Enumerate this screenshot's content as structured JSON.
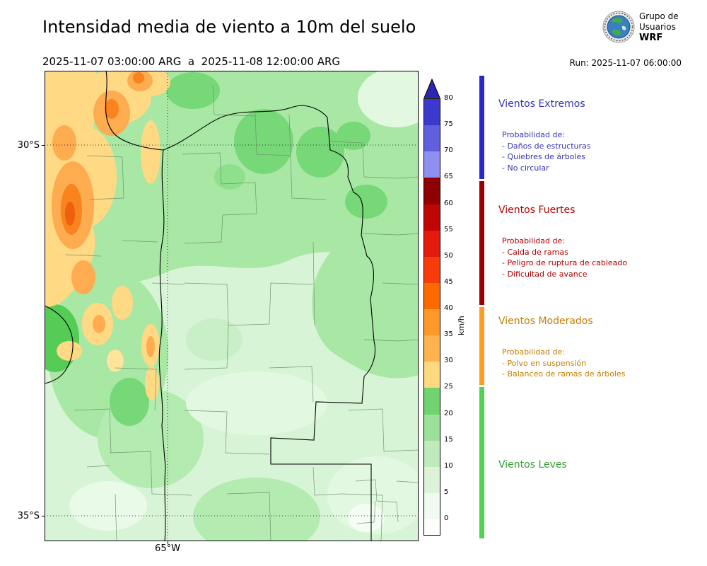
{
  "header": {
    "title": "Intensidad media de viento a 10m del suelo",
    "period": "2025-11-07 03:00:00 ARG  a  2025-11-08 12:00:00 ARG",
    "run": "Run: 2025-11-07 06:00:00",
    "logo": {
      "line1": "Grupo de",
      "line2": "Usuarios",
      "line3": "WRF"
    }
  },
  "map": {
    "lat_labels": [
      "30°S",
      "35°S"
    ],
    "lon_label": "65°W"
  },
  "colorbar": {
    "unit": "km/h",
    "arrow_color": "#2a28b0",
    "ticks_top_to_bottom": [
      80,
      75,
      70,
      65,
      60,
      55,
      50,
      45,
      40,
      35,
      30,
      25,
      20,
      15,
      10,
      5,
      0
    ],
    "segments_bottom_to_top": [
      {
        "to": 0,
        "color": "#fdfffd"
      },
      {
        "from": 0,
        "to": 5,
        "color": "#f1faf0"
      },
      {
        "from": 5,
        "to": 10,
        "color": "#dcf3da"
      },
      {
        "from": 10,
        "to": 15,
        "color": "#bfeabc"
      },
      {
        "from": 15,
        "to": 20,
        "color": "#9ce19a"
      },
      {
        "from": 20,
        "to": 25,
        "color": "#6fd46f"
      },
      {
        "from": 25,
        "to": 30,
        "color": "#ffd97e"
      },
      {
        "from": 30,
        "to": 35,
        "color": "#ffb34e"
      },
      {
        "from": 35,
        "to": 40,
        "color": "#fe9929"
      },
      {
        "from": 40,
        "to": 45,
        "color": "#ff6a00"
      },
      {
        "from": 45,
        "to": 50,
        "color": "#f83b0b"
      },
      {
        "from": 50,
        "to": 55,
        "color": "#e31a0c"
      },
      {
        "from": 55,
        "to": 60,
        "color": "#c00505"
      },
      {
        "from": 60,
        "to": 65,
        "color": "#8f0000"
      },
      {
        "from": 65,
        "to": 70,
        "color": "#8f8ff2"
      },
      {
        "from": 70,
        "to": 75,
        "color": "#5f5fe0"
      },
      {
        "from": 75,
        "to": 80,
        "color": "#3c3acd"
      }
    ]
  },
  "legend": {
    "extremos": {
      "title": "Vientos Extremos",
      "text_color": "#3434b4",
      "bar_color": "#2a28c8",
      "prob": "Probabilidad de:",
      "items": [
        "- Daños de estructuras",
        "- Quiebres de árboles",
        "- No circular"
      ]
    },
    "fuertes": {
      "title": "Vientos Fuertes",
      "text_color": "#b00000",
      "bar_color": "#990000",
      "prob": "Probabilidad de:",
      "items": [
        "- Caida de ramas",
        "- Peligro de ruptura de cableado",
        "- Dificultad de avance"
      ]
    },
    "moderados": {
      "title": "Vientos Moderados",
      "text_color": "#c07f00",
      "bar_color": "#ff9d20",
      "prob": "Probabilidad de:",
      "items": [
        "- Polvo en suspensión",
        "- Balanceo de ramas de árboles"
      ]
    },
    "leves": {
      "title": "Vientos Leves",
      "text_color": "#2f9e2f",
      "bar_color": "#4fd24f"
    }
  }
}
